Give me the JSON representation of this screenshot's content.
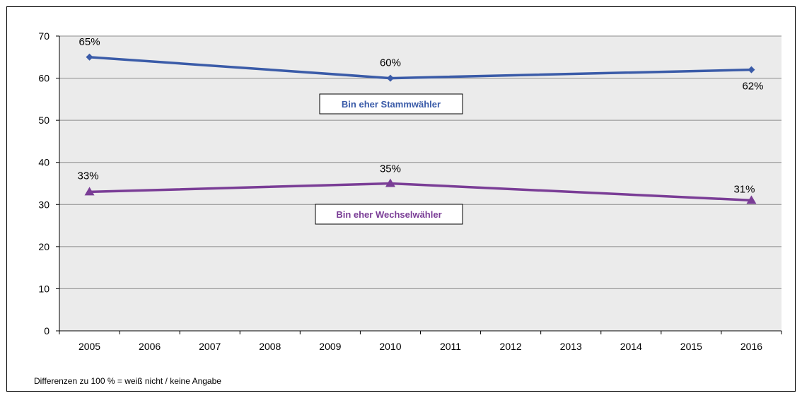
{
  "chart_data": {
    "type": "line",
    "categories": [
      "2005",
      "2006",
      "2007",
      "2008",
      "2009",
      "2010",
      "2011",
      "2012",
      "2013",
      "2014",
      "2015",
      "2016"
    ],
    "ylim": [
      0,
      70
    ],
    "yticks": [
      0,
      10,
      20,
      30,
      40,
      50,
      60,
      70
    ],
    "grid": true,
    "series": [
      {
        "name": "Bin eher Stammwähler",
        "color": "#3a5ba8",
        "marker": "diamond",
        "points": [
          {
            "x": "2005",
            "y": 65,
            "label": "65%"
          },
          {
            "x": "2010",
            "y": 60,
            "label": "60%"
          },
          {
            "x": "2016",
            "y": 62,
            "label": "62%"
          }
        ]
      },
      {
        "name": "Bin eher Wechselwähler",
        "color": "#7a3d96",
        "marker": "triangle",
        "points": [
          {
            "x": "2005",
            "y": 33,
            "label": "33%"
          },
          {
            "x": "2010",
            "y": 35,
            "label": "35%"
          },
          {
            "x": "2016",
            "y": 31,
            "label": "31%"
          }
        ]
      }
    ],
    "footnote": "Differenzen zu 100 % = weiß nicht / keine Angabe"
  }
}
